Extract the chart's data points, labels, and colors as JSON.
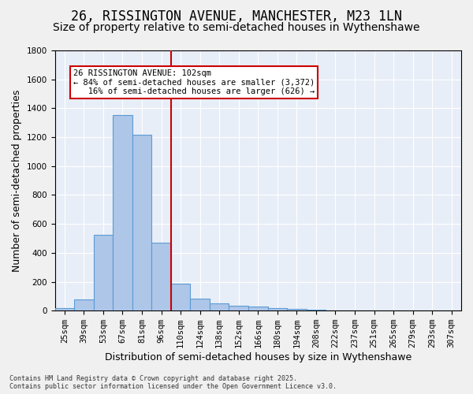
{
  "title": "26, RISSINGTON AVENUE, MANCHESTER, M23 1LN",
  "subtitle": "Size of property relative to semi-detached houses in Wythenshawe",
  "xlabel": "Distribution of semi-detached houses by size in Wythenshawe",
  "ylabel": "Number of semi-detached properties",
  "bin_labels": [
    "25sqm",
    "39sqm",
    "53sqm",
    "67sqm",
    "81sqm",
    "96sqm",
    "110sqm",
    "124sqm",
    "138sqm",
    "152sqm",
    "166sqm",
    "180sqm",
    "194sqm",
    "208sqm",
    "222sqm",
    "237sqm",
    "251sqm",
    "265sqm",
    "279sqm",
    "293sqm",
    "307sqm"
  ],
  "bar_values": [
    15,
    80,
    525,
    1355,
    1215,
    470,
    185,
    85,
    48,
    35,
    30,
    18,
    10,
    5,
    2,
    1,
    0,
    0,
    0,
    0,
    0
  ],
  "bar_color": "#aec6e8",
  "bar_edge_color": "#5b9bd5",
  "vline_x": 5.5,
  "annotation_text": "26 RISSINGTON AVENUE: 102sqm\n← 84% of semi-detached houses are smaller (3,372)\n   16% of semi-detached houses are larger (626) →",
  "annotation_box_color": "#ffffff",
  "annotation_box_edge": "#cc0000",
  "vline_color": "#cc0000",
  "ylim": [
    0,
    1800
  ],
  "yticks": [
    0,
    200,
    400,
    600,
    800,
    1000,
    1200,
    1400,
    1600,
    1800
  ],
  "background_color": "#e8eef7",
  "fig_background_color": "#f0f0f0",
  "footer_text": "Contains HM Land Registry data © Crown copyright and database right 2025.\nContains public sector information licensed under the Open Government Licence v3.0.",
  "title_fontsize": 12,
  "subtitle_fontsize": 10,
  "tick_fontsize": 7.5,
  "ylabel_fontsize": 9,
  "xlabel_fontsize": 9
}
